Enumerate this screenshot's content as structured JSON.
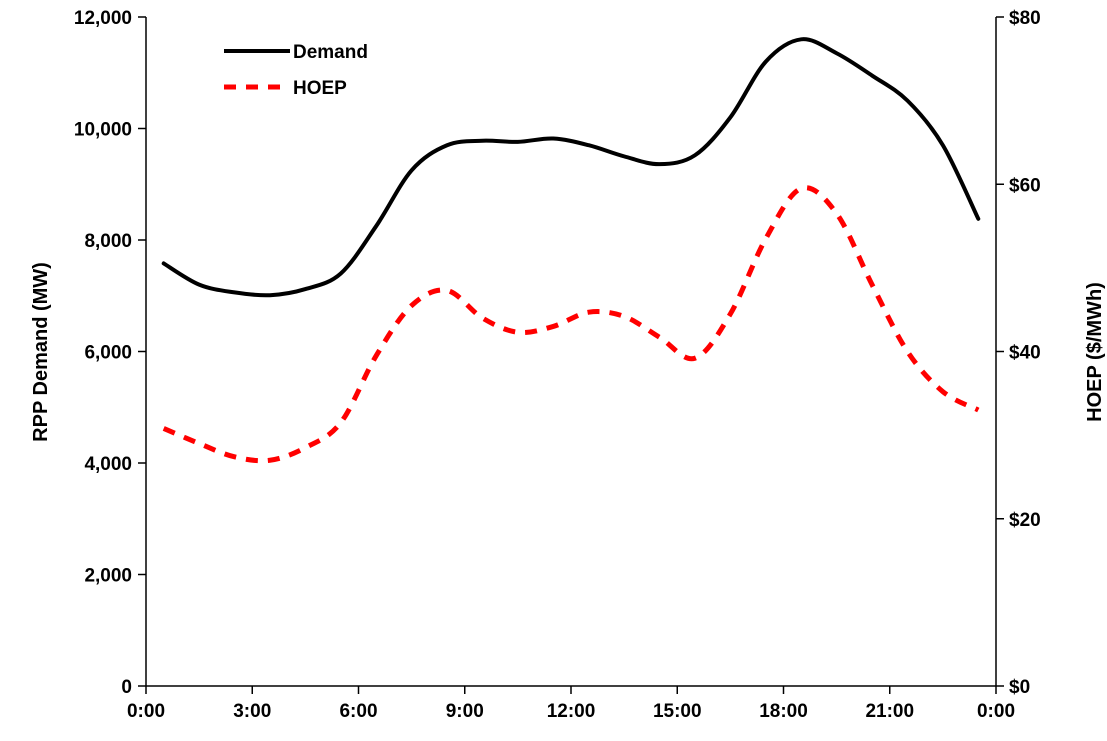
{
  "chart_data": {
    "type": "line",
    "title": "",
    "xlabel": "",
    "ylabel": "RPP Demand (MW)",
    "y2label": "HOEP ($/MWh)",
    "xlim": [
      0,
      24
    ],
    "ylim": [
      0,
      12000
    ],
    "y2lim": [
      0,
      80
    ],
    "x_ticks": [
      0,
      3,
      6,
      9,
      12,
      15,
      18,
      21,
      24
    ],
    "x_tick_labels": [
      "0:00",
      "3:00",
      "6:00",
      "9:00",
      "12:00",
      "15:00",
      "18:00",
      "21:00",
      "0:00"
    ],
    "y_ticks": [
      0,
      2000,
      4000,
      6000,
      8000,
      10000,
      12000
    ],
    "y_tick_labels": [
      "0",
      "2,000",
      "4,000",
      "6,000",
      "8,000",
      "10,000",
      "12,000"
    ],
    "y2_ticks": [
      0,
      20,
      40,
      60,
      80
    ],
    "y2_tick_labels": [
      "$0",
      "$20",
      "$40",
      "$60",
      "$80"
    ],
    "grid": false,
    "legend_position": "top-left",
    "x": [
      0.5,
      1.5,
      2.5,
      3.5,
      4.5,
      5.5,
      6.5,
      7.5,
      8.5,
      9.5,
      10.5,
      11.5,
      12.5,
      13.5,
      14.5,
      15.5,
      16.5,
      17.5,
      18.5,
      19.5,
      20.5,
      21.5,
      22.5,
      23.5
    ],
    "series": [
      {
        "name": "Demand",
        "axis": "left",
        "style": "solid",
        "color": "#000000",
        "values": [
          7580,
          7200,
          7060,
          7010,
          7120,
          7400,
          8250,
          9250,
          9700,
          9780,
          9760,
          9820,
          9700,
          9500,
          9360,
          9520,
          10200,
          11200,
          11600,
          11350,
          10950,
          10500,
          9700,
          8380
        ]
      },
      {
        "name": "HOEP",
        "axis": "right",
        "style": "dashed",
        "color": "#ff0000",
        "values": [
          30.8,
          29.0,
          27.4,
          27.0,
          28.5,
          31.5,
          39.5,
          45.5,
          47.3,
          44.0,
          42.3,
          43.0,
          44.7,
          44.2,
          41.7,
          39.2,
          44.5,
          53.5,
          59.5,
          56.5,
          48.0,
          40.0,
          35.2,
          33.0
        ]
      }
    ]
  }
}
